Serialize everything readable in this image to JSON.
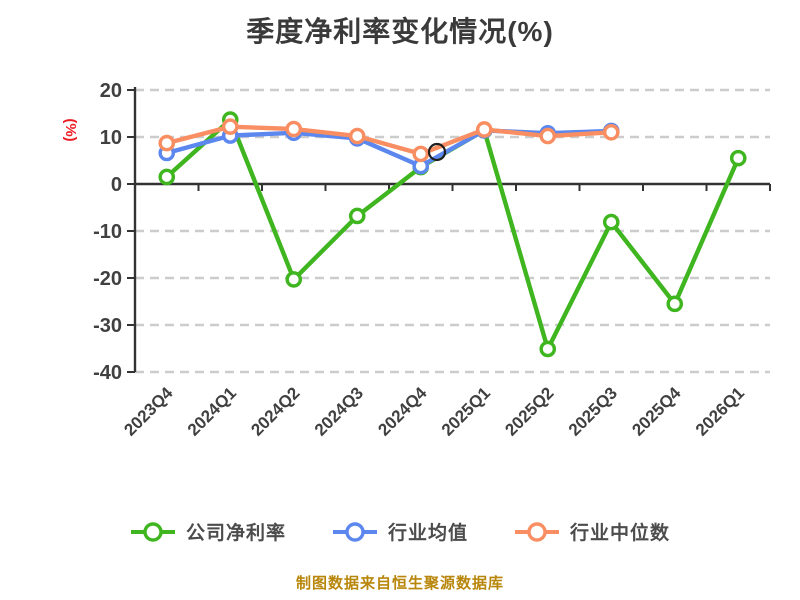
{
  "chart_data": {
    "type": "line",
    "title": "季度净利率变化情况(%)",
    "ylabel": "(%)",
    "xlabel": "",
    "categories": [
      "2023Q4",
      "2024Q1",
      "2024Q2",
      "2024Q3",
      "2024Q4",
      "2025Q1",
      "2025Q2",
      "2025Q3",
      "2025Q4",
      "2026Q1"
    ],
    "series": [
      {
        "name": "公司净利率",
        "color": "#3fb51f",
        "values": [
          1.5,
          13.7,
          -20.3,
          -6.8,
          3.6,
          11.4,
          -35.1,
          -8.1,
          -25.5,
          5.5
        ]
      },
      {
        "name": "行业均值",
        "color": "#5b87ee",
        "values": [
          6.6,
          10.3,
          10.9,
          9.7,
          3.8,
          11.4,
          10.8,
          11.3,
          null,
          null
        ]
      },
      {
        "name": "行业中位数",
        "color": "#f98e62",
        "values": [
          8.7,
          12.2,
          11.7,
          10.2,
          6.4,
          11.6,
          10.2,
          11.0,
          null,
          null
        ]
      }
    ],
    "ylim": [
      -40,
      20
    ],
    "yticks": [
      20,
      10,
      0,
      -10,
      -20,
      -30,
      -40
    ],
    "grid": "horizontal-dashed",
    "legend_position": "bottom",
    "marker": "circle-white-fill",
    "colors": {
      "axis": "#333333",
      "gridline": "#cccccc",
      "tick_label": "#404040",
      "title": "#3a3a3a",
      "legend_text": "#4c4c4c",
      "y_unit_label": "#ed1c24",
      "footer": "#b8860b"
    }
  },
  "footer": {
    "text": "制图数据来自恒生聚源数据库"
  }
}
